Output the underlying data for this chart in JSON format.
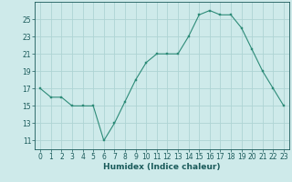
{
  "x": [
    0,
    1,
    2,
    3,
    4,
    5,
    6,
    7,
    8,
    9,
    10,
    11,
    12,
    13,
    14,
    15,
    16,
    17,
    18,
    19,
    20,
    21,
    22,
    23
  ],
  "y": [
    17,
    16,
    16,
    15,
    15,
    15,
    11,
    13,
    15.5,
    18,
    20,
    21,
    21,
    21,
    23,
    25.5,
    26,
    25.5,
    25.5,
    24,
    21.5,
    19,
    17,
    15
  ],
  "line_color": "#2d8b78",
  "marker_color": "#2d8b78",
  "bg_color": "#ceeaea",
  "grid_color": "#aed4d4",
  "xlabel": "Humidex (Indice chaleur)",
  "ylim": [
    10,
    27
  ],
  "yticks": [
    11,
    13,
    15,
    17,
    19,
    21,
    23,
    25
  ],
  "xticks": [
    0,
    1,
    2,
    3,
    4,
    5,
    6,
    7,
    8,
    9,
    10,
    11,
    12,
    13,
    14,
    15,
    16,
    17,
    18,
    19,
    20,
    21,
    22,
    23
  ],
  "xlim": [
    -0.5,
    23.5
  ],
  "tick_color": "#1a5a5a",
  "xlabel_fontsize": 6.5,
  "tick_fontsize": 5.5,
  "linewidth": 0.8,
  "markersize": 2.0
}
